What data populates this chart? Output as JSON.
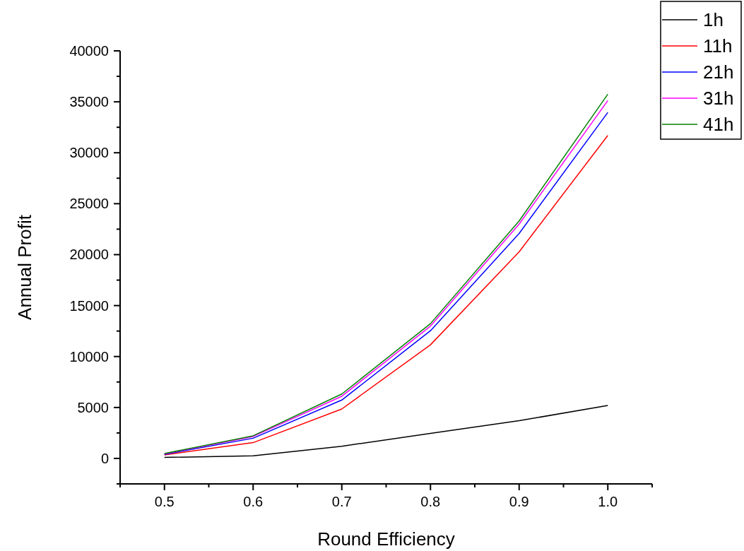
{
  "chart_data": {
    "type": "line",
    "xlabel": "Round Efficiency",
    "ylabel": "Annual Profit",
    "x": [
      0.5,
      0.6,
      0.7,
      0.8,
      0.9,
      1.0
    ],
    "series": [
      {
        "name": "1h",
        "color": "#000000",
        "values": [
          100,
          250,
          1200,
          2450,
          3700,
          5200
        ]
      },
      {
        "name": "11h",
        "color": "#ff0000",
        "values": [
          350,
          1550,
          4850,
          11150,
          20280,
          31700
        ]
      },
      {
        "name": "21h",
        "color": "#0000ff",
        "values": [
          400,
          1980,
          5730,
          12530,
          22080,
          33960
        ]
      },
      {
        "name": "31h",
        "color": "#ff00ff",
        "values": [
          450,
          2150,
          6100,
          12990,
          23000,
          35120
        ]
      },
      {
        "name": "41h",
        "color": "#008000",
        "values": [
          480,
          2220,
          6320,
          13230,
          23310,
          35740
        ]
      }
    ],
    "xlim": [
      0.45,
      1.05
    ],
    "xticks": [
      {
        "value": 0.45,
        "label": null
      },
      0.5,
      {
        "value": 0.55,
        "label": null
      },
      0.6,
      {
        "value": 0.65,
        "label": null
      },
      0.7,
      {
        "value": 0.75,
        "label": null
      },
      0.8,
      {
        "value": 0.85,
        "label": null
      },
      0.9,
      {
        "value": 0.95,
        "label": null
      },
      {
        "value": 1,
        "label": "1.0"
      },
      {
        "value": 1.05,
        "label": null
      }
    ],
    "ylim": [
      -2500,
      40000
    ],
    "yticks": [
      {
        "value": -2500,
        "label": null
      },
      0,
      {
        "value": 2500,
        "label": null
      },
      5000,
      {
        "value": 7500,
        "label": null
      },
      10000,
      {
        "value": 12500,
        "label": null
      },
      15000,
      {
        "value": 17500,
        "label": null
      },
      20000,
      {
        "value": 22500,
        "label": null
      },
      25000,
      {
        "value": 27500,
        "label": null
      },
      30000,
      {
        "value": 32500,
        "label": null
      },
      35000,
      {
        "value": 37500,
        "label": null
      },
      40000
    ],
    "legend": "top right",
    "marker": "none",
    "line_style": "solid",
    "grid": false
  }
}
